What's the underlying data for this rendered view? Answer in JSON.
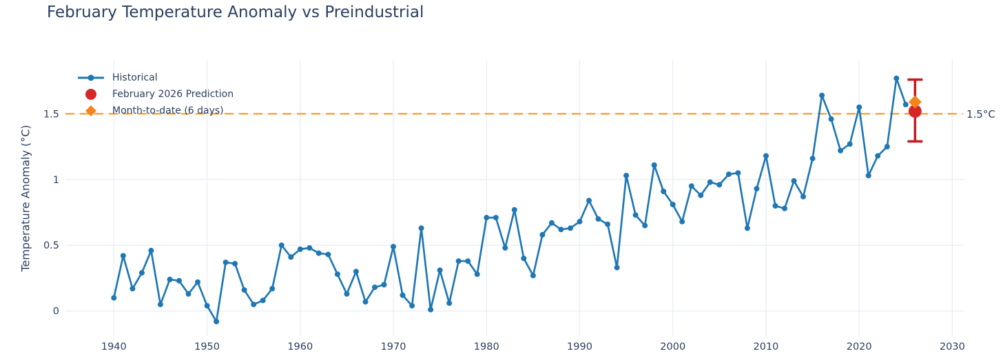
{
  "chart_data": {
    "type": "line",
    "title": "February Temperature Anomaly vs Preindustrial",
    "xlabel": "",
    "ylabel": "Temperature Anomaly (°C)",
    "background": "#ffffff",
    "text_color": "#2a3f5f",
    "grid_color": "#e7edf6",
    "grid": true,
    "x_axis": {
      "ticks": [
        1940,
        1950,
        1960,
        1970,
        1980,
        1990,
        2000,
        2010,
        2020,
        2030
      ],
      "range": [
        1934.8,
        2031.3
      ]
    },
    "y_axis": {
      "ticks": [
        0,
        0.5,
        1,
        1.5
      ],
      "tick_labels": [
        "0",
        "0.5",
        "1",
        "1.5"
      ],
      "range": [
        -0.19,
        1.91
      ]
    },
    "series": [
      {
        "name": "Historical",
        "mode": "line+markers",
        "color": "#1f77b4",
        "years": [
          1940,
          1941,
          1942,
          1943,
          1944,
          1945,
          1946,
          1947,
          1948,
          1949,
          1950,
          1951,
          1952,
          1953,
          1954,
          1955,
          1956,
          1957,
          1958,
          1959,
          1960,
          1961,
          1962,
          1963,
          1964,
          1965,
          1966,
          1967,
          1968,
          1969,
          1970,
          1971,
          1972,
          1973,
          1974,
          1975,
          1976,
          1977,
          1978,
          1979,
          1980,
          1981,
          1982,
          1983,
          1984,
          1985,
          1986,
          1987,
          1988,
          1989,
          1990,
          1991,
          1992,
          1993,
          1994,
          1995,
          1996,
          1997,
          1998,
          1999,
          2000,
          2001,
          2002,
          2003,
          2004,
          2005,
          2006,
          2007,
          2008,
          2009,
          2010,
          2011,
          2012,
          2013,
          2014,
          2015,
          2016,
          2017,
          2018,
          2019,
          2020,
          2021,
          2022,
          2023,
          2024,
          2025
        ],
        "values": [
          0.1,
          0.42,
          0.17,
          0.29,
          0.46,
          0.05,
          0.24,
          0.23,
          0.13,
          0.22,
          0.04,
          -0.08,
          0.37,
          0.36,
          0.16,
          0.05,
          0.08,
          0.17,
          0.5,
          0.41,
          0.47,
          0.48,
          0.44,
          0.43,
          0.28,
          0.13,
          0.3,
          0.07,
          0.18,
          0.2,
          0.49,
          0.12,
          0.04,
          0.63,
          0.01,
          0.31,
          0.06,
          0.38,
          0.38,
          0.28,
          0.71,
          0.71,
          0.48,
          0.77,
          0.4,
          0.27,
          0.58,
          0.67,
          0.62,
          0.63,
          0.68,
          0.84,
          0.7,
          0.66,
          0.33,
          1.03,
          0.73,
          0.65,
          1.11,
          0.91,
          0.81,
          0.68,
          0.95,
          0.88,
          0.98,
          0.96,
          1.04,
          1.05,
          0.63,
          0.93,
          1.18,
          0.8,
          0.78,
          0.99,
          0.87,
          1.16,
          1.64,
          1.46,
          1.22,
          1.27,
          1.55,
          1.03,
          1.18,
          1.25,
          1.77,
          1.57
        ]
      },
      {
        "name": "February 2026 Prediction",
        "mode": "marker",
        "marker": "circle",
        "color": "#d62728",
        "error_color": "#c11a1e",
        "year": 2026,
        "value": 1.52,
        "ci_low": 1.29,
        "ci_high": 1.76
      },
      {
        "name": "Month-to-date (6 days)",
        "mode": "marker",
        "marker": "diamond",
        "color": "#f58518",
        "year": 2026,
        "value": 1.59
      }
    ],
    "reference_line": {
      "value": 1.5,
      "label": "1.5°C",
      "color": "#fca43f",
      "style": "dashed"
    },
    "legend": {
      "position": "top-left",
      "items": [
        {
          "label": "Historical",
          "marker": "line-dot",
          "color": "#1f77b4"
        },
        {
          "label": "February 2026 Prediction",
          "marker": "circle",
          "color": "#d62728"
        },
        {
          "label": "Month-to-date (6 days)",
          "marker": "diamond",
          "color": "#f58518"
        }
      ]
    }
  }
}
